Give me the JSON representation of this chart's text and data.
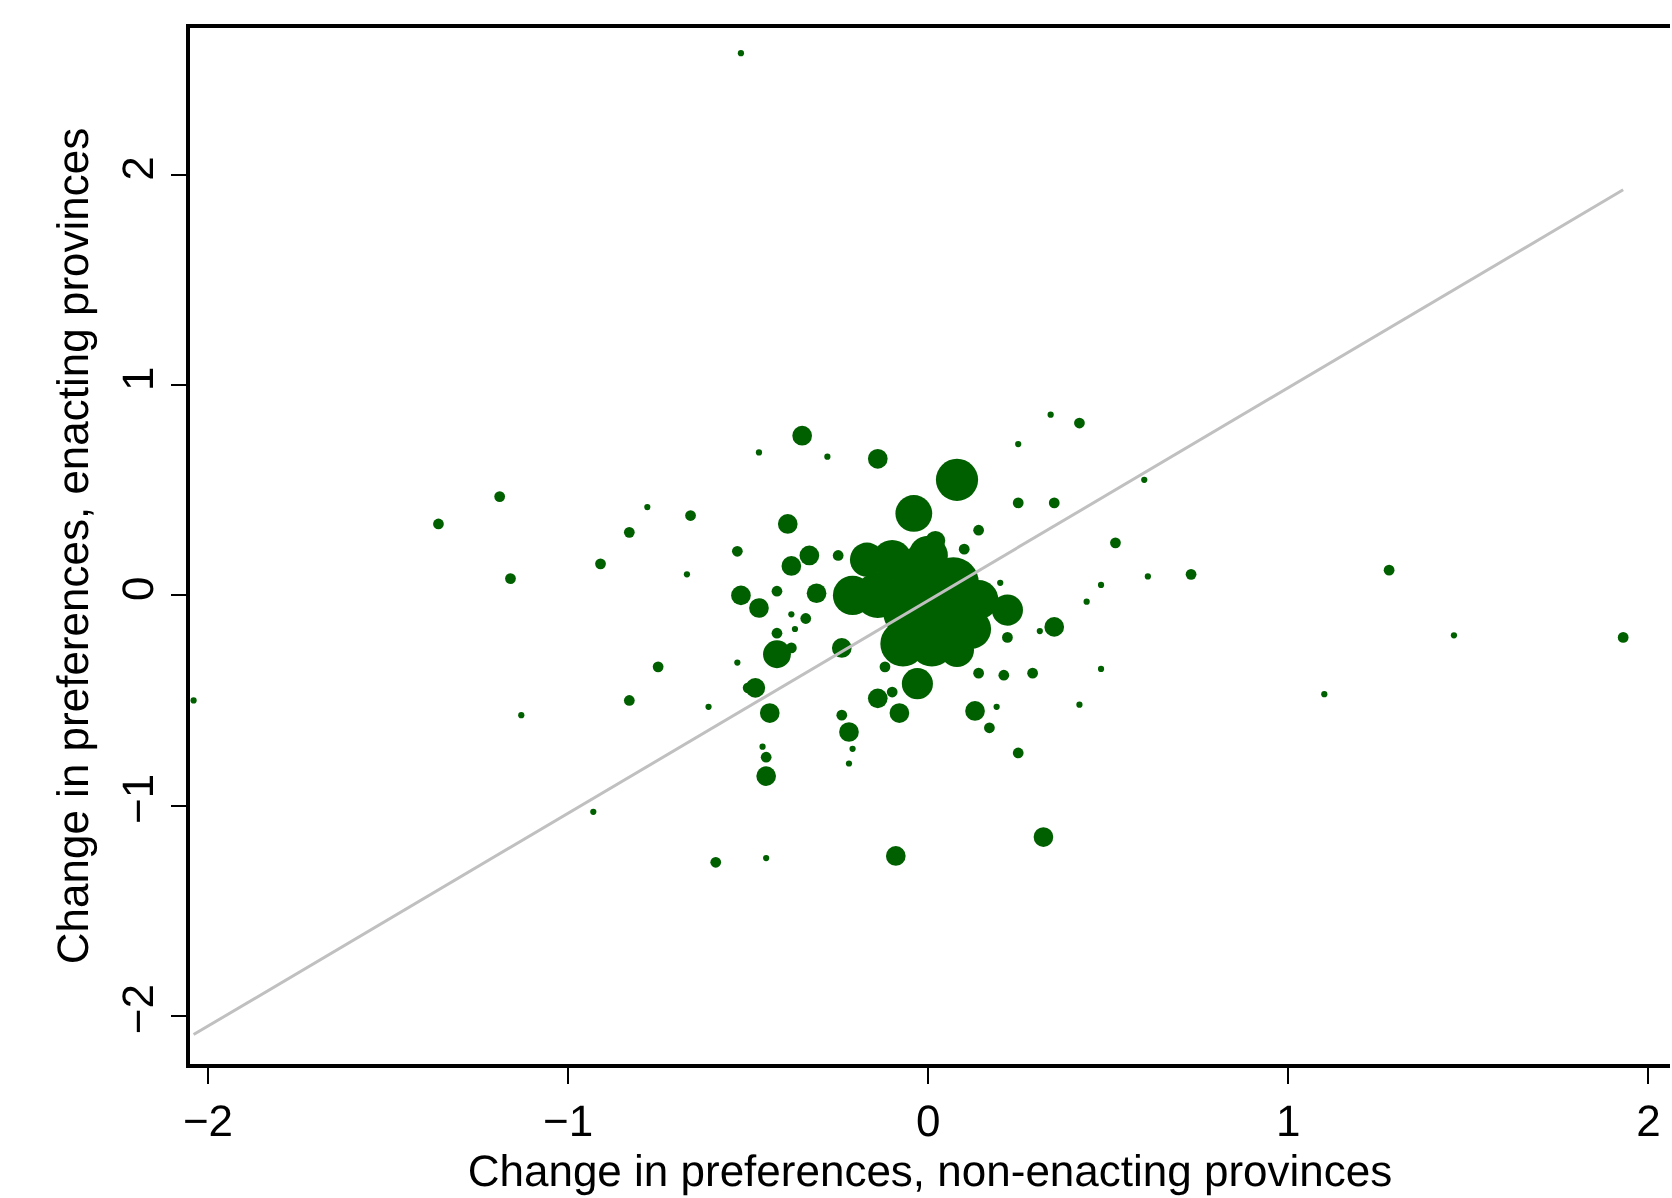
{
  "chart_data": {
    "type": "bubble",
    "xlabel": "Change in preferences, non-enacting provinces",
    "ylabel": "Change in preferences, enacting provinces",
    "xlim": [
      -2.05,
      2.06
    ],
    "ylim": [
      -2.23,
      2.7
    ],
    "xticks": [
      -2,
      -1,
      0,
      1,
      2
    ],
    "yticks": [
      -2,
      -1,
      0,
      1,
      2
    ],
    "grid": false,
    "series": [
      {
        "marker": "circle",
        "color": "#006000",
        "x": [
          -0.52,
          -0.35,
          -0.47,
          -0.28,
          -0.14,
          -1.19,
          -1.36,
          -0.78,
          -0.66,
          -0.83,
          -0.39,
          -0.04,
          0.08,
          -0.91,
          -1.16,
          -0.67,
          -0.53,
          -0.52,
          -0.47,
          -0.42,
          -0.38,
          -0.33,
          -0.31,
          -0.25,
          -0.42,
          -0.38,
          -0.34,
          -0.37,
          -0.42,
          -0.38,
          -2.04,
          -0.75,
          -0.53,
          -0.48,
          -0.5,
          -0.83,
          -1.13,
          -0.61,
          -0.44,
          -0.24,
          -0.24,
          -0.22,
          -0.14,
          -0.08,
          -0.1,
          -0.03,
          -0.46,
          -0.45,
          -0.45,
          -0.21,
          -0.22,
          -0.93,
          -0.59,
          -0.45,
          -0.09,
          -0.12,
          0.34,
          0.42,
          0.25,
          0.25,
          0.35,
          0.6,
          0.14,
          0.02,
          0.1,
          0.52,
          0.2,
          0.48,
          0.61,
          0.73,
          1.28,
          0.22,
          0.44,
          0.35,
          0.31,
          0.22,
          1.46,
          1.93,
          0.14,
          0.21,
          0.29,
          0.48,
          0.42,
          1.1,
          0.13,
          0.19,
          0.17,
          0.25,
          0.32,
          -0.02,
          0.07,
          0.14,
          -0.04,
          0.04,
          0.12,
          -0.07,
          0.01,
          0.08,
          -0.17,
          -0.21,
          -0.1,
          0.0,
          -0.14
        ],
        "values": [
          2.58,
          0.76,
          0.68,
          0.66,
          0.65,
          0.47,
          0.34,
          0.42,
          0.38,
          0.3,
          0.34,
          0.39,
          0.55,
          0.15,
          0.08,
          0.1,
          0.21,
          0.0,
          -0.06,
          0.02,
          0.14,
          0.19,
          0.01,
          0.19,
          -0.18,
          -0.09,
          -0.11,
          -0.16,
          -0.28,
          -0.25,
          -0.5,
          -0.34,
          -0.32,
          -0.44,
          -0.44,
          -0.5,
          -0.57,
          -0.53,
          -0.56,
          -0.25,
          -0.57,
          -0.65,
          -0.49,
          -0.56,
          -0.46,
          -0.42,
          -0.72,
          -0.77,
          -0.86,
          -0.73,
          -0.8,
          -1.03,
          -1.27,
          -1.25,
          -1.24,
          -0.34,
          0.86,
          0.82,
          0.72,
          0.44,
          0.44,
          0.55,
          0.31,
          0.26,
          0.22,
          0.25,
          0.06,
          0.05,
          0.09,
          0.1,
          0.12,
          -0.07,
          -0.03,
          -0.15,
          -0.17,
          -0.2,
          -0.19,
          -0.2,
          -0.37,
          -0.38,
          -0.37,
          -0.35,
          -0.52,
          -0.47,
          -0.55,
          -0.53,
          -0.63,
          -0.75,
          -1.15,
          0.1,
          0.06,
          -0.02,
          -0.07,
          -0.11,
          -0.16,
          -0.23,
          -0.23,
          -0.26,
          0.17,
          0.0,
          0.17,
          0.19,
          0.0
        ],
        "sizes": [
          0.01,
          0.1,
          0.01,
          0.01,
          0.1,
          0.03,
          0.03,
          0.01,
          0.03,
          0.03,
          0.1,
          0.35,
          0.46,
          0.03,
          0.03,
          0.01,
          0.03,
          0.1,
          0.1,
          0.03,
          0.1,
          0.1,
          0.1,
          0.03,
          0.03,
          0.01,
          0.03,
          0.01,
          0.2,
          0.03,
          0.01,
          0.03,
          0.01,
          0.1,
          0.03,
          0.03,
          0.01,
          0.01,
          0.1,
          0.1,
          0.03,
          0.1,
          0.1,
          0.1,
          0.03,
          0.25,
          0.01,
          0.03,
          0.1,
          0.01,
          0.01,
          0.01,
          0.03,
          0.01,
          0.1,
          0.03,
          0.01,
          0.03,
          0.01,
          0.03,
          0.03,
          0.01,
          0.03,
          0.1,
          0.03,
          0.03,
          0.01,
          0.01,
          0.01,
          0.03,
          0.03,
          0.25,
          0.01,
          0.1,
          0.01,
          0.03,
          0.01,
          0.03,
          0.03,
          0.03,
          0.03,
          0.01,
          0.01,
          0.01,
          0.1,
          0.01,
          0.03,
          0.03,
          0.1,
          0.83,
          0.67,
          0.4,
          1,
          0.83,
          0.4,
          0.53,
          0.53,
          0.3,
          0.3,
          0.4,
          0.4,
          0.4,
          0.53
        ]
      },
      {
        "type": "line",
        "marker": "none",
        "color": "#c0c0c0",
        "x": [
          -2.04,
          1.93
        ],
        "values": [
          -2.09,
          1.93
        ]
      }
    ]
  }
}
